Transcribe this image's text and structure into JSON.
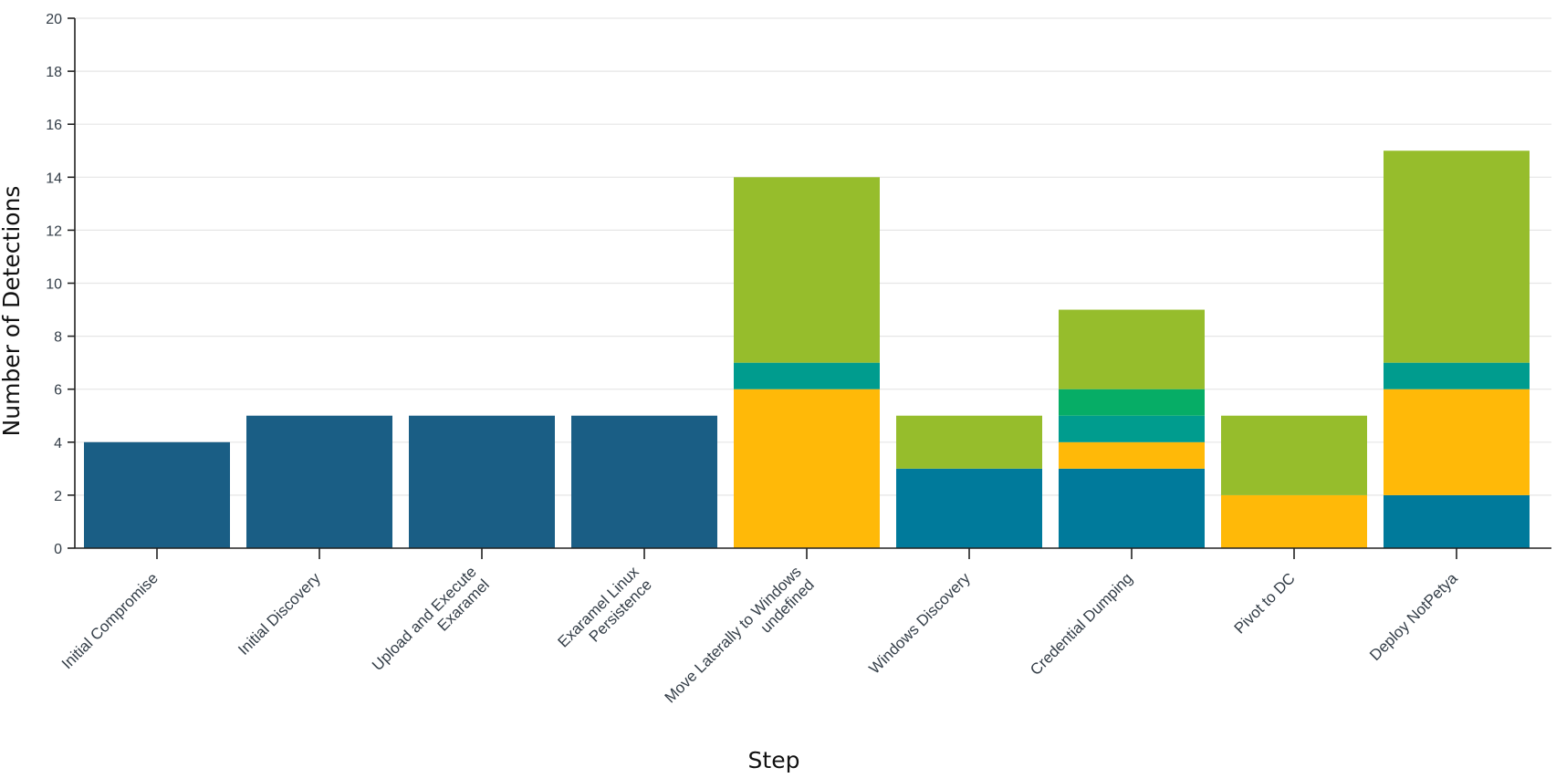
{
  "chart_data": {
    "type": "bar",
    "stacked": true,
    "categories": [
      [
        "Initial Compromise"
      ],
      [
        "Initial Discovery"
      ],
      [
        "Upload and Execute",
        "Exaramel"
      ],
      [
        "Exaramel Linux",
        "Persistence"
      ],
      [
        "Move Laterally to Windows",
        "undefined"
      ],
      [
        "Windows Discovery"
      ],
      [
        "Credential Dumping"
      ],
      [
        "Pivot to DC"
      ],
      [
        "Deploy NotPetya"
      ]
    ],
    "series": [
      {
        "color": "#1a5e85",
        "values": [
          4,
          5,
          5,
          5,
          0,
          0,
          0,
          0,
          0
        ]
      },
      {
        "color": "#007a9b",
        "values": [
          0,
          0,
          0,
          0,
          0,
          3,
          3,
          0,
          2
        ]
      },
      {
        "color": "#ffb908",
        "values": [
          0,
          0,
          0,
          0,
          6,
          0,
          1,
          2,
          4
        ]
      },
      {
        "color": "#009c8e",
        "values": [
          0,
          0,
          0,
          0,
          1,
          0,
          1,
          0,
          1
        ]
      },
      {
        "color": "#06ad66",
        "values": [
          0,
          0,
          0,
          0,
          0,
          0,
          1,
          0,
          0
        ]
      },
      {
        "color": "#96bd2c",
        "values": [
          0,
          0,
          0,
          0,
          7,
          2,
          3,
          3,
          8
        ]
      }
    ],
    "xlabel": "Step",
    "ylabel": "Number of Detections",
    "ylim": [
      0,
      20
    ],
    "yticks": [
      0,
      2,
      4,
      6,
      8,
      10,
      12,
      14,
      16,
      18,
      20
    ],
    "grid": true,
    "legend": "none"
  }
}
